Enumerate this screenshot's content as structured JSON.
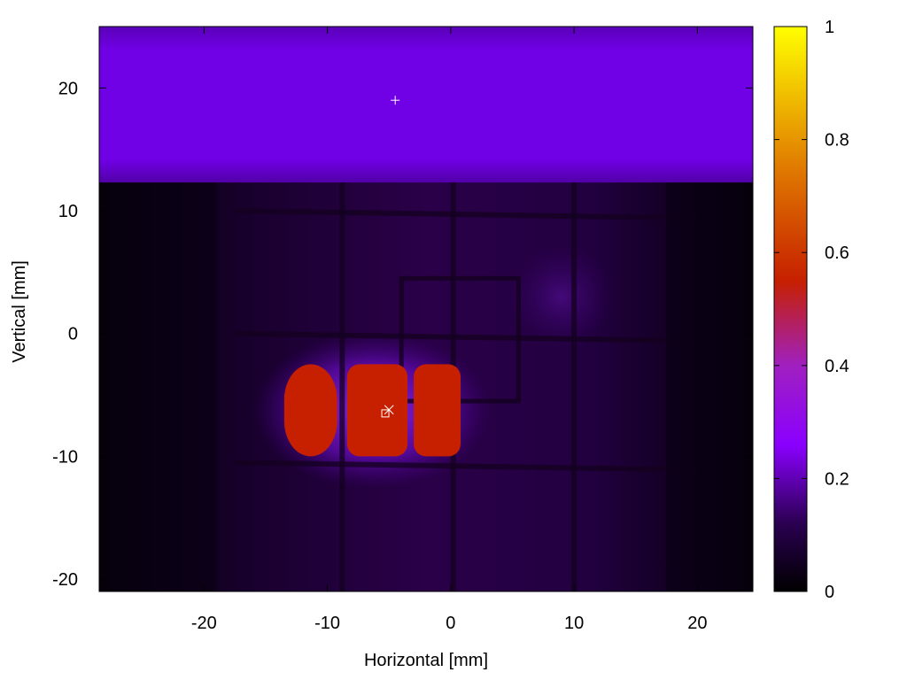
{
  "chart_data": {
    "type": "heatmap",
    "title": "",
    "xlabel": "Horizontal [mm]",
    "ylabel": "Vertical [mm]",
    "xlim": [
      -28.5,
      24.5
    ],
    "ylim": [
      -21,
      25
    ],
    "xticks": [
      -20,
      -10,
      0,
      10,
      20
    ],
    "yticks": [
      -20,
      -10,
      0,
      10,
      20
    ],
    "colorbar": {
      "range": [
        0,
        1
      ],
      "ticks": [
        0,
        0.2,
        0.4,
        0.6,
        0.8,
        1
      ],
      "tick_labels": [
        "0",
        "0.2",
        "0.4",
        "0.6",
        "0.8",
        "1"
      ],
      "colormap": [
        "#000000",
        "#3a0070",
        "#8a00ff",
        "#c62000",
        "#e07a00",
        "#ffff00"
      ]
    },
    "regions": {
      "top_band": {
        "y_range": [
          12.3,
          25
        ],
        "value": 0.22
      },
      "dark_lower": {
        "y_range": [
          -21,
          12.3
        ],
        "value": 0.05
      },
      "hot_spot": {
        "x_range": [
          -13.5,
          0.8
        ],
        "y_range": [
          -10,
          -2.5
        ],
        "value": 0.52
      }
    },
    "grid_lines": {
      "vertical_x": [
        -8.8,
        0.2,
        10.0
      ],
      "horizontal_y": [
        10.0,
        0.0,
        -10.5
      ]
    },
    "inner_rectangle": {
      "x_range": [
        -4,
        5.5
      ],
      "y_range": [
        -5.5,
        4.5
      ]
    },
    "markers": [
      {
        "symbol": "plus",
        "x": -4.5,
        "y": 19.0
      },
      {
        "symbol": "cross",
        "x": -5.0,
        "y": -6.2
      },
      {
        "symbol": "square",
        "x": -5.3,
        "y": -6.5
      }
    ]
  }
}
